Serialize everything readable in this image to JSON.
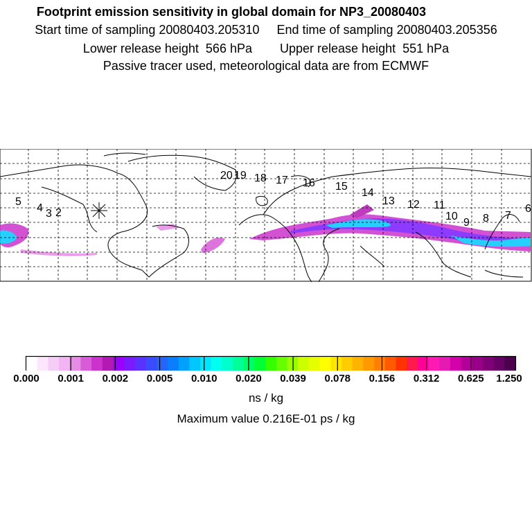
{
  "header": {
    "title": "Footprint emission sensitivity in global domain for NP3_20080403",
    "line2": "Start time of sampling 20080403.205310     End time of sampling 20080403.205356",
    "line3": "Lower release height  566 hPa        Upper release height  551 hPa",
    "line4": "Passive tracer used, meteorological data are from ECMWF"
  },
  "map": {
    "projection": "equirectangular",
    "grid": true,
    "release_marker": "asterisk",
    "trajectory_labels": [
      "5",
      "4",
      "3",
      "2",
      "20",
      "19",
      "18",
      "17",
      "16",
      "15",
      "14",
      "13",
      "12",
      "11",
      "10",
      "9",
      "8",
      "7",
      "6"
    ]
  },
  "colorbar": {
    "ticks": [
      "0.000",
      "0.001",
      "0.002",
      "0.005",
      "0.010",
      "0.020",
      "0.039",
      "0.078",
      "0.156",
      "0.312",
      "0.625",
      "1.250"
    ],
    "units": "ns / kg",
    "colors": [
      "#ffffff",
      "#fbe6fb",
      "#f6cdf6",
      "#f2b4f2",
      "#e68ce6",
      "#d85bd8",
      "#cc33cc",
      "#b31ab3",
      "#9900ff",
      "#7a1aff",
      "#5a32ff",
      "#3b4bff",
      "#2564ff",
      "#0b7dff",
      "#00a0ff",
      "#00c8ff",
      "#00e6ff",
      "#00ffee",
      "#00ffcc",
      "#00ff99",
      "#00ff66",
      "#00ff33",
      "#33ff00",
      "#66ff00",
      "#99ff00",
      "#ccff00",
      "#e6ff00",
      "#ffff00",
      "#ffe600",
      "#ffcc00",
      "#ffb300",
      "#ff9900",
      "#ff8000",
      "#ff5a00",
      "#ff3300",
      "#ff1a4d",
      "#ff0099",
      "#ff1ab3",
      "#e619b3",
      "#d400aa",
      "#b30099",
      "#990088",
      "#800077",
      "#660066",
      "#4d004d"
    ]
  },
  "max_value": "Maximum value  0.216E-01 ps / kg"
}
